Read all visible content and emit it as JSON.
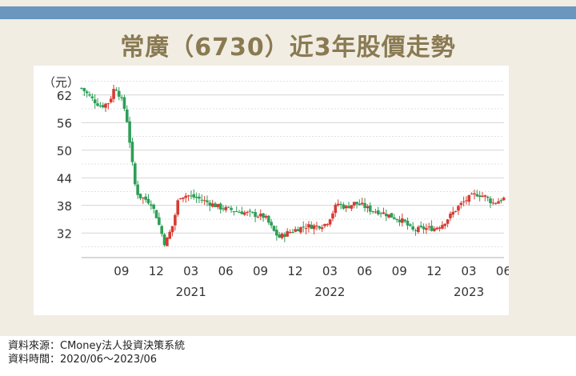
{
  "title": "常廣（6730）近3年股價走勢",
  "footer": {
    "source": "資料來源：CMoney法人投資決策系統",
    "period": "資料時間：2020/06～2023/06"
  },
  "colors": {
    "frame_bg": "#f1ede3",
    "top_bar": "#6b96bd",
    "title": "#8a7a52",
    "up_candle": "#d63b32",
    "down_candle": "#2e9e57",
    "grid": "#bbbbbb"
  },
  "chart_data": {
    "type": "candlestick",
    "ylabel": "（元）",
    "ylim": [
      27,
      67
    ],
    "yticks": [
      32,
      38,
      44,
      50,
      56,
      62
    ],
    "x_range": [
      2020.38,
      2023.42
    ],
    "grid": "horizontal-dashed",
    "month_ticks": [
      {
        "label": "09",
        "x": 2020.667
      },
      {
        "label": "12",
        "x": 2020.917
      },
      {
        "label": "03",
        "x": 2021.167
      },
      {
        "label": "06",
        "x": 2021.417
      },
      {
        "label": "09",
        "x": 2021.667
      },
      {
        "label": "12",
        "x": 2021.917
      },
      {
        "label": "03",
        "x": 2022.167
      },
      {
        "label": "06",
        "x": 2022.417
      },
      {
        "label": "09",
        "x": 2022.667
      },
      {
        "label": "12",
        "x": 2022.917
      },
      {
        "label": "03",
        "x": 2023.167
      },
      {
        "label": "06",
        "x": 2023.417
      }
    ],
    "year_ticks": [
      {
        "label": "2021",
        "x": 2021.167
      },
      {
        "label": "2022",
        "x": 2022.167
      },
      {
        "label": "2023",
        "x": 2023.167
      }
    ],
    "approx_close_path": [
      [
        2020.38,
        63.5
      ],
      [
        2020.46,
        61.0
      ],
      [
        2020.52,
        59.5
      ],
      [
        2020.58,
        60.5
      ],
      [
        2020.62,
        64.0
      ],
      [
        2020.66,
        61.5
      ],
      [
        2020.7,
        58.0
      ],
      [
        2020.73,
        51.0
      ],
      [
        2020.76,
        43.0
      ],
      [
        2020.79,
        40.0
      ],
      [
        2020.83,
        39.5
      ],
      [
        2020.88,
        38.5
      ],
      [
        2020.92,
        35.5
      ],
      [
        2020.98,
        29.5
      ],
      [
        2021.04,
        34.0
      ],
      [
        2021.08,
        40.0
      ],
      [
        2021.14,
        40.2
      ],
      [
        2021.22,
        39.5
      ],
      [
        2021.3,
        38.5
      ],
      [
        2021.38,
        37.5
      ],
      [
        2021.46,
        37.0
      ],
      [
        2021.54,
        36.5
      ],
      [
        2021.62,
        36.0
      ],
      [
        2021.7,
        35.5
      ],
      [
        2021.76,
        32.5
      ],
      [
        2021.8,
        31.0
      ],
      [
        2021.86,
        32.0
      ],
      [
        2021.94,
        33.0
      ],
      [
        2022.0,
        33.5
      ],
      [
        2022.08,
        33.5
      ],
      [
        2022.14,
        34.0
      ],
      [
        2022.18,
        36.0
      ],
      [
        2022.22,
        38.5
      ],
      [
        2022.28,
        37.5
      ],
      [
        2022.34,
        38.5
      ],
      [
        2022.4,
        38.0
      ],
      [
        2022.46,
        37.0
      ],
      [
        2022.54,
        36.5
      ],
      [
        2022.62,
        35.5
      ],
      [
        2022.7,
        34.5
      ],
      [
        2022.76,
        32.5
      ],
      [
        2022.84,
        33.0
      ],
      [
        2022.92,
        33.0
      ],
      [
        2022.98,
        34.0
      ],
      [
        2023.04,
        36.0
      ],
      [
        2023.1,
        38.0
      ],
      [
        2023.16,
        39.5
      ],
      [
        2023.22,
        40.5
      ],
      [
        2023.28,
        40.0
      ],
      [
        2023.34,
        38.5
      ],
      [
        2023.42,
        39.5
      ]
    ]
  }
}
